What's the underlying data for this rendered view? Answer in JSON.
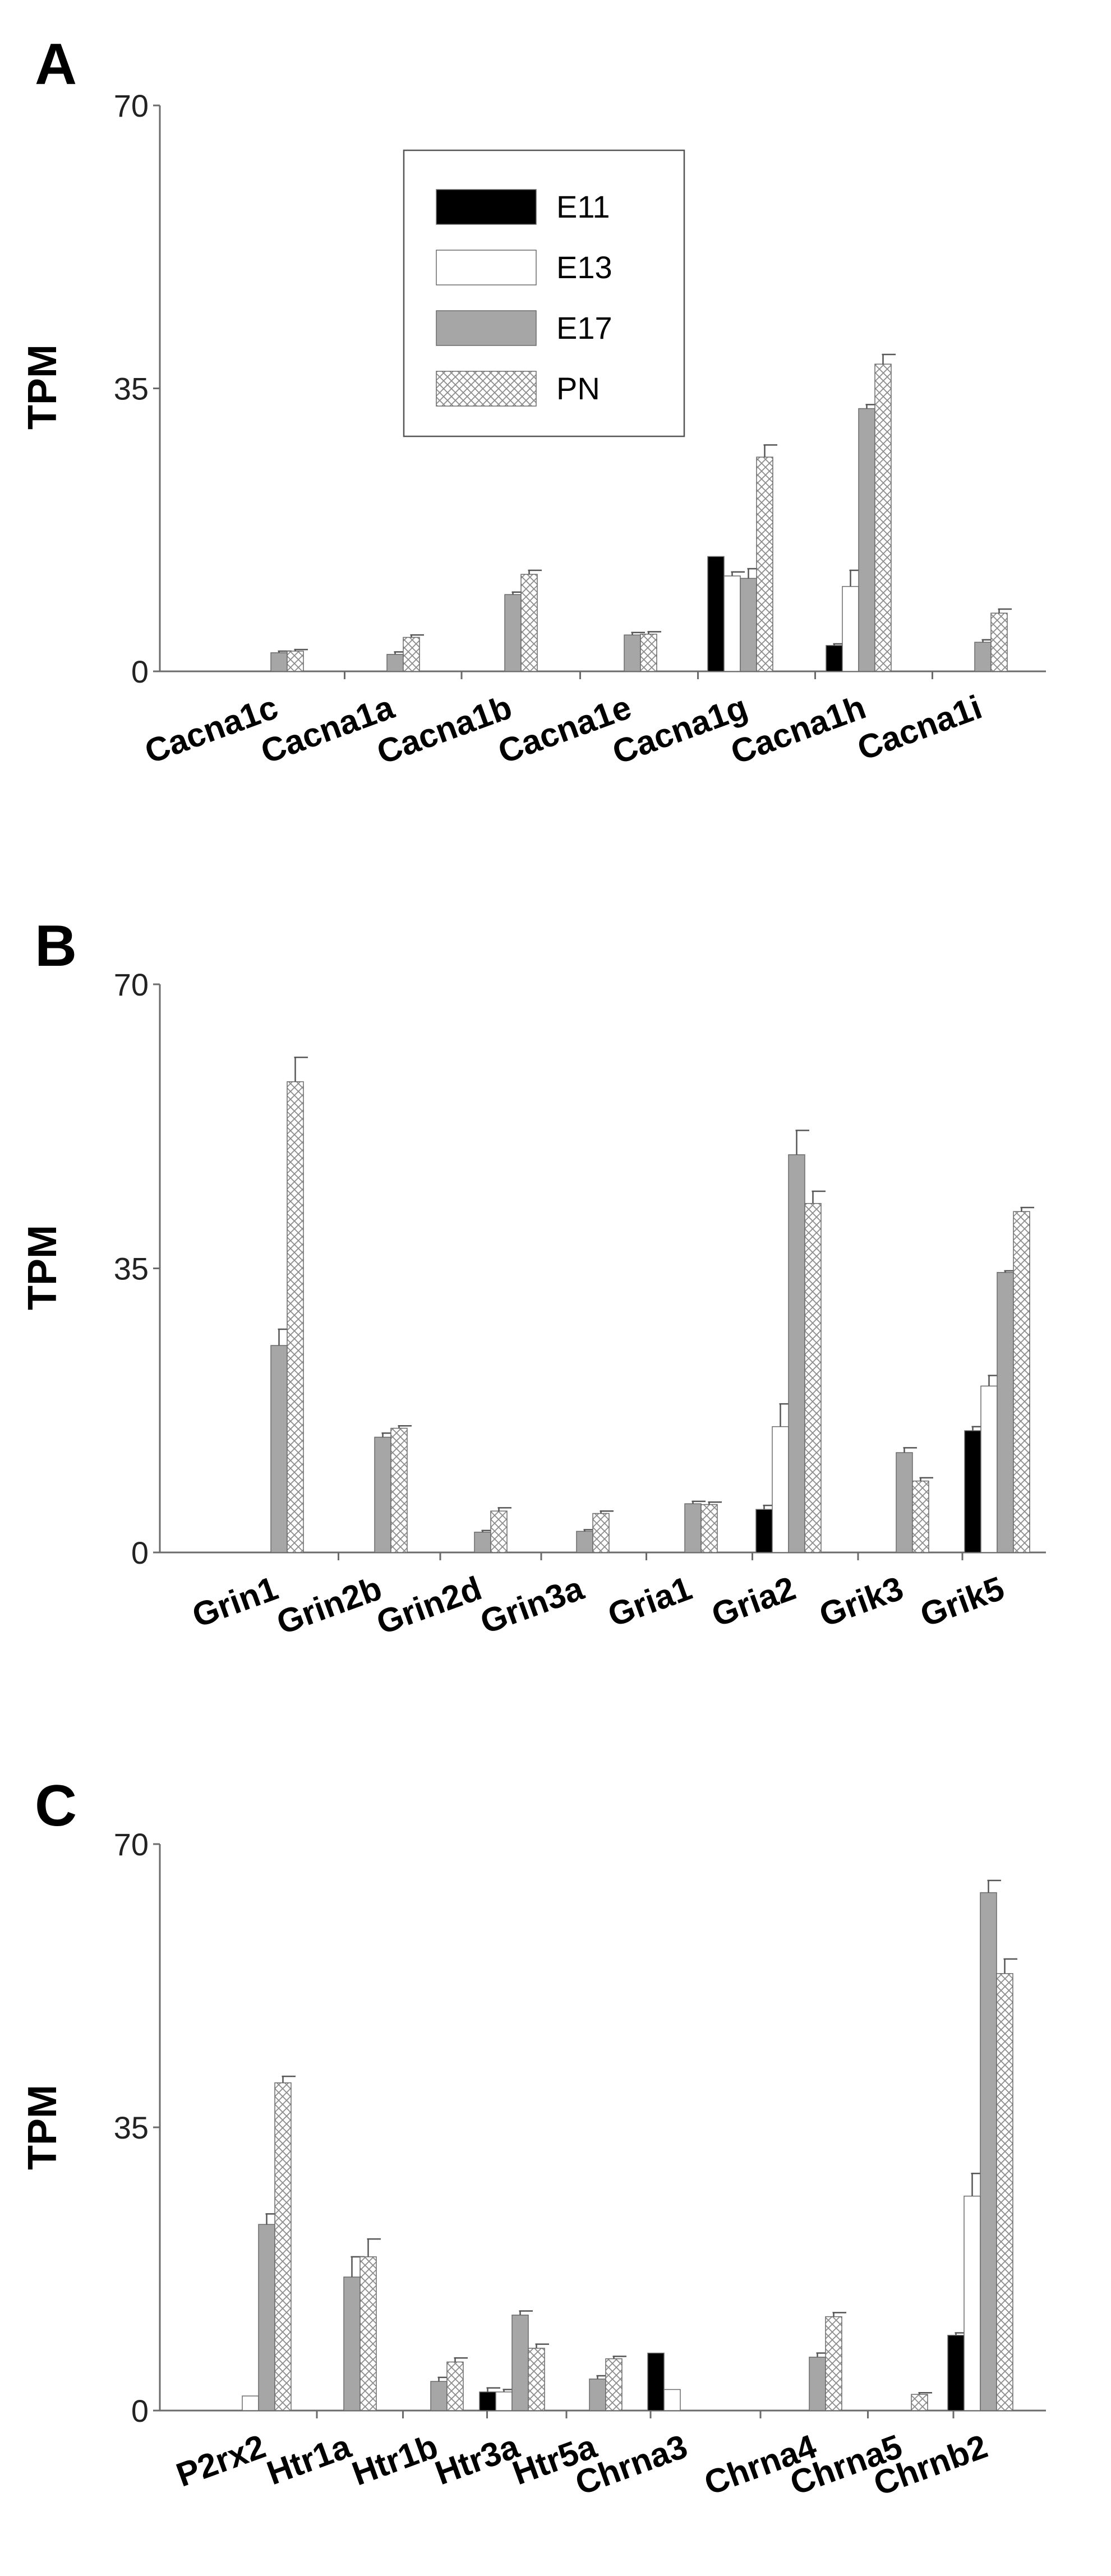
{
  "series_style": {
    "E11": {
      "fill": "#000000",
      "pattern": false
    },
    "E13": {
      "fill": "#ffffff",
      "pattern": false
    },
    "E17": {
      "fill": "#a6a6a6",
      "pattern": false
    },
    "PN": {
      "fill": "#ffffff",
      "pattern": true
    }
  },
  "chart_data": [
    {
      "type": "bar",
      "panel": "A",
      "ylabel": "TPM",
      "ylim": [
        0,
        70
      ],
      "yticks": [
        0,
        35,
        70
      ],
      "grid": false,
      "legend": {
        "placement": "top-center",
        "entries": [
          "E11",
          "E13",
          "E17",
          "PN"
        ]
      },
      "categories": [
        "Cacna1c",
        "Cacna1a",
        "Cacna1b",
        "Cacna1e",
        "Cacna1g",
        "Cacna1h",
        "Cacna1i"
      ],
      "series": [
        {
          "name": "E11",
          "values": [
            null,
            null,
            null,
            null,
            14.2,
            3.2,
            null
          ],
          "errors": [
            null,
            null,
            null,
            null,
            0,
            0.2,
            null
          ]
        },
        {
          "name": "E13",
          "values": [
            null,
            null,
            null,
            null,
            11.8,
            10.5,
            null
          ],
          "errors": [
            null,
            null,
            null,
            null,
            0.5,
            2.0,
            null
          ]
        },
        {
          "name": "E17",
          "values": [
            2.3,
            2.1,
            9.5,
            4.5,
            11.5,
            32.5,
            3.6
          ],
          "errors": [
            0.2,
            0.3,
            0.3,
            0.3,
            1.2,
            0.5,
            0.3
          ]
        },
        {
          "name": "PN",
          "values": [
            2.5,
            4.2,
            12.0,
            4.6,
            26.5,
            38.0,
            7.2
          ],
          "errors": [
            0.2,
            0.3,
            0.5,
            0.3,
            1.5,
            1.2,
            0.5
          ]
        }
      ]
    },
    {
      "type": "bar",
      "panel": "B",
      "ylabel": "TPM",
      "ylim": [
        0,
        70
      ],
      "yticks": [
        0,
        35,
        70
      ],
      "grid": false,
      "categories": [
        "Grin1",
        "Grin2b",
        "Grin2d",
        "Grin3a",
        "Gria1",
        "Gria2",
        "Grik3",
        "Grik5"
      ],
      "series": [
        {
          "name": "E11",
          "values": [
            null,
            null,
            null,
            null,
            null,
            5.3,
            null,
            15.0
          ],
          "errors": [
            null,
            null,
            null,
            null,
            null,
            0.5,
            null,
            0.5
          ]
        },
        {
          "name": "E13",
          "values": [
            null,
            null,
            null,
            null,
            null,
            15.5,
            null,
            20.5
          ],
          "errors": [
            null,
            null,
            null,
            null,
            null,
            2.8,
            null,
            1.3
          ]
        },
        {
          "name": "E17",
          "values": [
            25.5,
            14.2,
            2.5,
            2.6,
            6.0,
            49.0,
            12.3,
            34.5
          ],
          "errors": [
            2.0,
            0.5,
            0.2,
            0.2,
            0.3,
            3.0,
            0.6,
            0.2
          ]
        },
        {
          "name": "PN",
          "values": [
            58.0,
            15.3,
            5.1,
            4.8,
            5.9,
            43.0,
            8.8,
            42.0
          ],
          "errors": [
            3.0,
            0.3,
            0.4,
            0.3,
            0.3,
            1.5,
            0.4,
            0.5
          ]
        }
      ]
    },
    {
      "type": "bar",
      "panel": "C",
      "ylabel": "TPM",
      "ylim": [
        0,
        70
      ],
      "yticks": [
        0,
        35,
        70
      ],
      "grid": false,
      "categories": [
        "P2rx2",
        "Htr1a",
        "Htr1b",
        "Htr3a",
        "Htr5a",
        "Chrna3",
        "Chrna4",
        "Chrna5",
        "Chrnb2"
      ],
      "series": [
        {
          "name": "E11",
          "values": [
            null,
            null,
            null,
            2.3,
            null,
            7.1,
            null,
            null,
            9.3
          ],
          "errors": [
            null,
            null,
            null,
            0.5,
            null,
            0,
            null,
            null,
            0.3
          ]
        },
        {
          "name": "E13",
          "values": [
            1.8,
            null,
            null,
            2.3,
            null,
            2.6,
            null,
            null,
            26.5
          ],
          "errors": [
            0,
            null,
            null,
            0.3,
            null,
            0,
            null,
            null,
            2.8
          ]
        },
        {
          "name": "E17",
          "values": [
            23.0,
            16.5,
            3.6,
            11.8,
            3.9,
            null,
            6.6,
            null,
            64.0
          ],
          "errors": [
            1.3,
            2.5,
            0.5,
            0.5,
            0.4,
            null,
            0.5,
            null,
            1.5
          ]
        },
        {
          "name": "PN",
          "values": [
            40.5,
            19.0,
            6.0,
            7.7,
            6.4,
            null,
            11.6,
            2.0,
            54.0
          ],
          "errors": [
            0.8,
            2.2,
            0.5,
            0.5,
            0.3,
            null,
            0.5,
            0.2,
            1.8
          ]
        }
      ]
    }
  ]
}
